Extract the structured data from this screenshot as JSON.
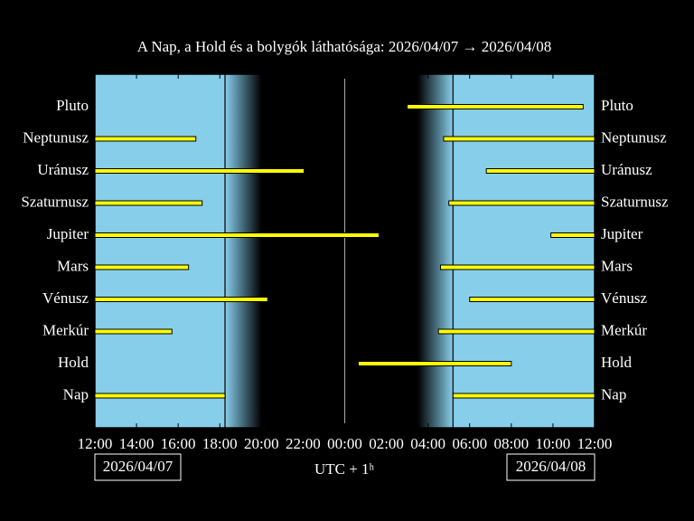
{
  "chart_data": {
    "type": "timeline",
    "title": "A Nap, a Hold és a bolygók láthatósága: 2026/04/07 → 2026/04/08",
    "xlabel": "UTC + 1ʰ",
    "start_date": "2026/04/07",
    "end_date": "2026/04/08",
    "xlim": [
      12,
      36
    ],
    "xticks": [
      {
        "value": 12,
        "label": "12:00"
      },
      {
        "value": 14,
        "label": "14:00"
      },
      {
        "value": 16,
        "label": "16:00"
      },
      {
        "value": 18,
        "label": "18:00"
      },
      {
        "value": 20,
        "label": "20:00"
      },
      {
        "value": 22,
        "label": "22:00"
      },
      {
        "value": 24,
        "label": "00:00"
      },
      {
        "value": 26,
        "label": "02:00"
      },
      {
        "value": 28,
        "label": "04:00"
      },
      {
        "value": 30,
        "label": "06:00"
      },
      {
        "value": 32,
        "label": "08:00"
      },
      {
        "value": 34,
        "label": "10:00"
      },
      {
        "value": 36,
        "label": "12:00"
      }
    ],
    "sky": {
      "sunset": 18.25,
      "dusk_end": 20.0,
      "dawn_start": 27.5,
      "sunrise": 29.2,
      "midnight": 24
    },
    "day_color": "#87ceeb",
    "bar_color": "#ffff00",
    "categories": [
      "Pluto",
      "Neptunusz",
      "Uránusz",
      "Szaturnusz",
      "Jupiter",
      "Mars",
      "Vénusz",
      "Merkúr",
      "Hold",
      "Nap"
    ],
    "intervals": [
      [
        [
          27.0,
          35.45
        ]
      ],
      [
        [
          12,
          16.85
        ],
        [
          28.75,
          36
        ]
      ],
      [
        [
          12,
          22.05
        ],
        [
          30.8,
          36
        ]
      ],
      [
        [
          12,
          17.15
        ],
        [
          29.0,
          36
        ]
      ],
      [
        [
          12,
          25.65
        ],
        [
          33.9,
          36
        ]
      ],
      [
        [
          12,
          16.5
        ],
        [
          28.6,
          36
        ]
      ],
      [
        [
          12,
          20.3
        ],
        [
          30.0,
          36
        ]
      ],
      [
        [
          12,
          15.7
        ],
        [
          28.5,
          36
        ]
      ],
      [
        [
          24.65,
          32.0
        ]
      ],
      [
        [
          12,
          18.25
        ],
        [
          29.2,
          36
        ]
      ]
    ]
  }
}
